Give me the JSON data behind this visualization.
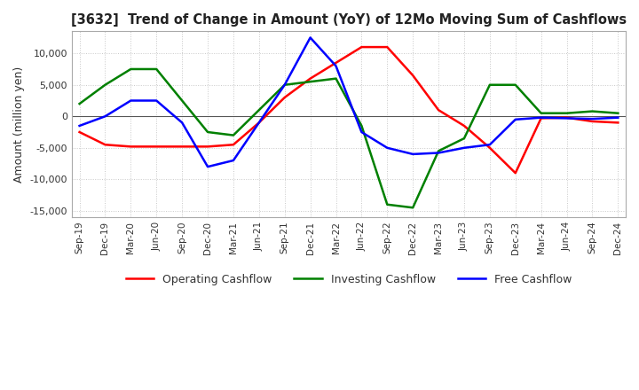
{
  "title": "[3632]  Trend of Change in Amount (YoY) of 12Mo Moving Sum of Cashflows",
  "ylabel": "Amount (million yen)",
  "background_color": "#ffffff",
  "grid_color": "#c8c8c8",
  "ylim": [
    -16000,
    13500
  ],
  "yticks": [
    -15000,
    -10000,
    -5000,
    0,
    5000,
    10000
  ],
  "x_labels": [
    "Sep-19",
    "Dec-19",
    "Mar-20",
    "Jun-20",
    "Sep-20",
    "Dec-20",
    "Mar-21",
    "Jun-21",
    "Sep-21",
    "Dec-21",
    "Mar-22",
    "Jun-22",
    "Sep-22",
    "Dec-22",
    "Mar-23",
    "Jun-23",
    "Sep-23",
    "Dec-23",
    "Mar-24",
    "Jun-24",
    "Sep-24",
    "Dec-24"
  ],
  "operating": [
    -2500,
    -4500,
    -4800,
    -4800,
    -4800,
    -4800,
    -4500,
    -1000,
    3000,
    6000,
    8500,
    11000,
    11000,
    6500,
    1000,
    -1500,
    -5000,
    -9000,
    -300,
    -200,
    -800,
    -1000
  ],
  "investing": [
    2000,
    5000,
    7500,
    7500,
    2500,
    -2500,
    -3000,
    1000,
    5000,
    5500,
    6000,
    -1500,
    -14000,
    -14500,
    -5500,
    -3500,
    5000,
    5000,
    500,
    500,
    800,
    500
  ],
  "free": [
    -1500,
    0,
    2500,
    2500,
    -1000,
    -8000,
    -7000,
    -1000,
    5000,
    12500,
    8000,
    -2500,
    -5000,
    -6000,
    -5800,
    -5000,
    -4500,
    -500,
    -200,
    -300,
    -400,
    -200
  ],
  "operating_color": "#ff0000",
  "investing_color": "#008000",
  "free_color": "#0000ff",
  "line_width": 1.8
}
